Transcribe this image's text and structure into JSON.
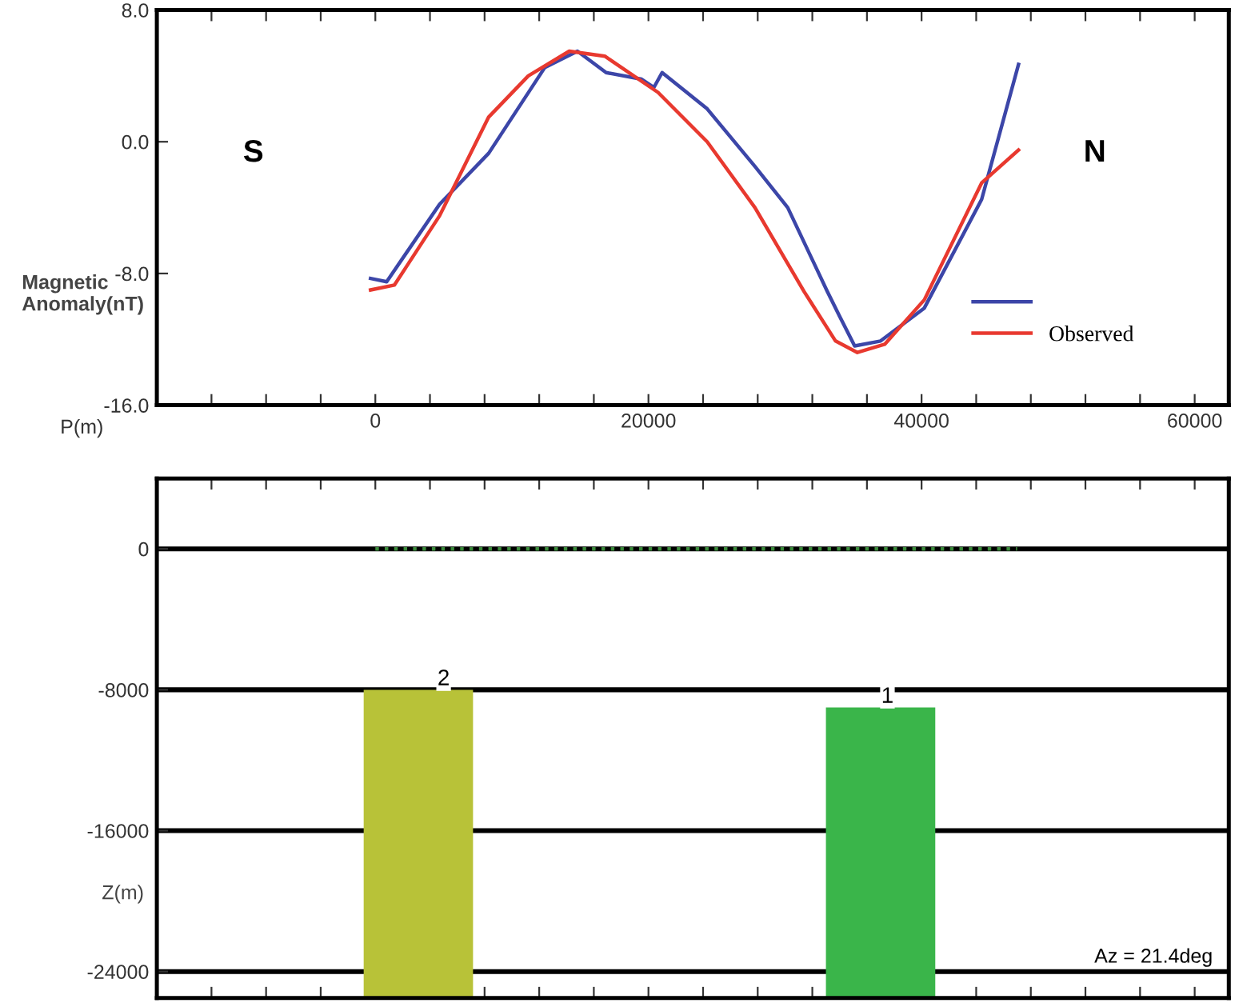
{
  "chart_data": [
    {
      "type": "line",
      "ylabel": "Magnetic\nAnomaly(nT)",
      "xlabel": "P(m)",
      "xlim": [
        -16000,
        62500
      ],
      "ylim": [
        -16,
        8
      ],
      "xticks": [
        {
          "value": -16000,
          "label": null
        },
        {
          "value": -12000,
          "label": null
        },
        {
          "value": -8000,
          "label": null
        },
        {
          "value": -4000,
          "label": null
        },
        0,
        {
          "value": 4000,
          "label": null
        },
        {
          "value": 8000,
          "label": null
        },
        {
          "value": 12000,
          "label": null
        },
        {
          "value": 16000,
          "label": null
        },
        20000,
        {
          "value": 24000,
          "label": null
        },
        {
          "value": 28000,
          "label": null
        },
        {
          "value": 32000,
          "label": null
        },
        {
          "value": 36000,
          "label": null
        },
        40000,
        {
          "value": 44000,
          "label": null
        },
        {
          "value": 48000,
          "label": null
        },
        {
          "value": 52000,
          "label": null
        },
        {
          "value": 56000,
          "label": null
        },
        60000
      ],
      "yticks": [
        {
          "value": 8,
          "label": "8.0"
        },
        {
          "value": 0,
          "label": "0.0"
        },
        {
          "value": -8,
          "label": "-8.0"
        },
        {
          "value": -16,
          "label": "-16.0"
        }
      ],
      "series": [
        {
          "color": "#3c46a8",
          "x": [
            -350,
            830,
            4700,
            8300,
            12400,
            14800,
            16900,
            19500,
            20400,
            21000,
            24300,
            27800,
            30200,
            33100,
            34000,
            35100,
            37000,
            40200,
            44400,
            47100
          ],
          "values": [
            -8.3,
            -8.5,
            -3.8,
            -0.7,
            4.5,
            5.5,
            4.2,
            3.8,
            3.3,
            4.2,
            2.0,
            -1.5,
            -4.0,
            -9.1,
            -10.6,
            -12.4,
            -12.1,
            -10.1,
            -3.5,
            4.7
          ]
        },
        {
          "name": "Observed",
          "color": "#e8392f",
          "x": [
            -350,
            1400,
            4700,
            8300,
            11200,
            14200,
            16800,
            20700,
            24300,
            27800,
            31400,
            33700,
            35300,
            37300,
            40200,
            44400,
            47100
          ],
          "values": [
            -9.0,
            -8.7,
            -4.5,
            1.5,
            4.0,
            5.5,
            5.2,
            3.0,
            0.0,
            -4.0,
            -9.1,
            -12.1,
            -12.8,
            -12.3,
            -9.6,
            -2.5,
            -0.5
          ]
        }
      ],
      "legend": "bottom right",
      "grid": false,
      "annotations": [
        "S",
        "N"
      ]
    },
    {
      "type": "bar",
      "ylabel": "Z(m)",
      "xlim": [
        -16000,
        62500
      ],
      "ylim": [
        -25500,
        4000
      ],
      "tick_labels": "y",
      "grid": "y",
      "yticks": [
        0,
        -8000,
        -16000,
        -24000
      ],
      "series": [
        {
          "type": "bar",
          "x": [
            3150,
            37000
          ],
          "base": [
            -25500,
            -25500
          ],
          "values": [
            17500,
            16500
          ],
          "colors": [
            "#b8c238",
            "#3ab54a"
          ]
        },
        {
          "type": "line",
          "x": [
            0,
            47000
          ],
          "values": [
            0,
            0
          ],
          "color": "#3a8a3a",
          "line_style": "dotted"
        }
      ],
      "annotations": [
        {
          "text": "2",
          "x": 5000,
          "y": -8000
        },
        {
          "text": "1",
          "x": 37500,
          "y": -9000
        },
        "Az = 21.4deg"
      ]
    }
  ]
}
